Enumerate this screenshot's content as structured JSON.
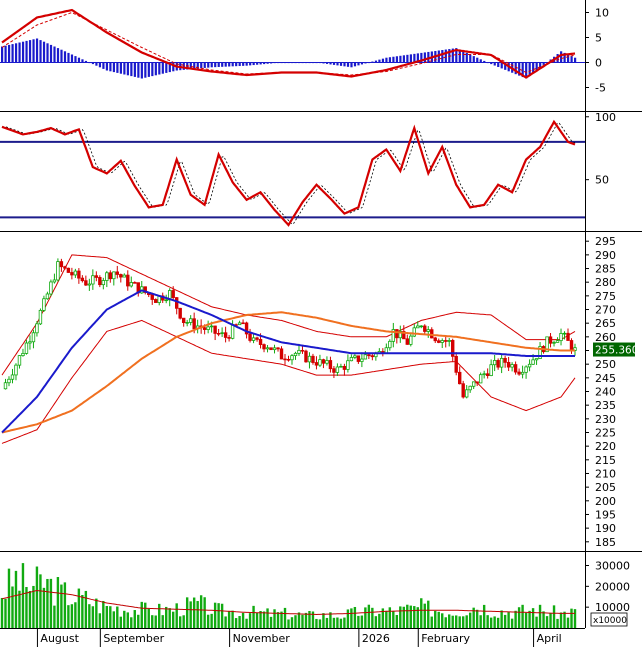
{
  "chart_data": [
    {
      "panel": "macd",
      "type": "line+bar",
      "y_ticks": [
        10,
        5,
        0,
        -5
      ],
      "ylim": [
        -9.5,
        12.5
      ],
      "line_color": "#d40000",
      "hist_color": "#1a1acc",
      "x_range": [
        0,
        164
      ],
      "series": [
        {
          "role": "macd",
          "x": [
            0,
            10,
            20,
            30,
            40,
            50,
            60,
            70,
            80,
            90,
            100,
            110,
            120,
            130,
            140,
            150,
            160,
            164
          ],
          "values": [
            4.0,
            9.0,
            10.5,
            6.0,
            2.0,
            -0.8,
            -1.8,
            -2.5,
            -2.0,
            -2.0,
            -2.8,
            -1.5,
            0.4,
            2.5,
            1.5,
            -3.0,
            1.5,
            1.8
          ]
        },
        {
          "role": "signal",
          "x": [
            0,
            10,
            20,
            30,
            40,
            50,
            60,
            70,
            80,
            90,
            100,
            110,
            120,
            130,
            140,
            150,
            160,
            164
          ],
          "values": [
            3.0,
            7.5,
            10.0,
            6.5,
            3.0,
            -0.3,
            -1.5,
            -2.3,
            -2.0,
            -2.0,
            -2.5,
            -1.8,
            -0.2,
            1.6,
            1.6,
            -2.0,
            0.8,
            1.5
          ]
        }
      ]
    },
    {
      "panel": "stochastic",
      "type": "line",
      "y_ticks": [
        100,
        50
      ],
      "ylim": [
        10,
        103
      ],
      "levels": [
        80,
        20
      ],
      "level_color": "#1c1c8c",
      "line_color": "#d40000",
      "x_range": [
        0,
        164
      ],
      "series": [
        {
          "role": "k",
          "x": [
            0,
            6,
            10,
            14,
            18,
            22,
            26,
            30,
            34,
            38,
            42,
            46,
            50,
            54,
            58,
            62,
            66,
            70,
            74,
            78,
            82,
            86,
            90,
            94,
            98,
            102,
            106,
            110,
            114,
            118,
            122,
            126,
            130,
            134,
            138,
            142,
            146,
            150,
            154,
            158,
            162,
            164
          ],
          "values": [
            92,
            86,
            88,
            91,
            86,
            90,
            60,
            55,
            65,
            45,
            28,
            30,
            66,
            38,
            30,
            70,
            48,
            34,
            40,
            26,
            14,
            32,
            46,
            35,
            23,
            28,
            66,
            74,
            57,
            91,
            55,
            76,
            46,
            28,
            30,
            46,
            40,
            66,
            76,
            96,
            80,
            78
          ]
        }
      ]
    },
    {
      "panel": "price",
      "type": "candlestick+line",
      "y_ticks": [
        295,
        290,
        285,
        280,
        275,
        270,
        265,
        260,
        255,
        250,
        245,
        240,
        235,
        230,
        225,
        220,
        215,
        210,
        205,
        200,
        195,
        190,
        185
      ],
      "ylim": [
        182,
        298
      ],
      "last_price": "255.360",
      "x_range": [
        0,
        164
      ],
      "series": [
        {
          "role": "close",
          "x": [
            0,
            4,
            8,
            12,
            16,
            20,
            24,
            28,
            32,
            36,
            40,
            44,
            48,
            52,
            56,
            60,
            64,
            68,
            72,
            76,
            80,
            84,
            88,
            92,
            96,
            100,
            104,
            108,
            112,
            116,
            120,
            124,
            128,
            132,
            136,
            140,
            144,
            148,
            152,
            156,
            160,
            164
          ],
          "values": [
            241,
            250,
            260,
            272,
            286,
            283,
            280,
            281,
            284,
            280,
            277,
            274,
            276,
            266,
            264,
            262,
            260,
            265,
            258,
            257,
            253,
            254,
            252,
            250,
            248,
            251,
            253,
            254,
            262,
            258,
            265,
            260,
            258,
            238,
            244,
            249,
            251,
            248,
            252,
            258,
            261,
            255
          ]
        },
        {
          "role": "ma_blue",
          "x": [
            0,
            10,
            20,
            30,
            40,
            50,
            60,
            70,
            80,
            90,
            100,
            110,
            120,
            130,
            140,
            150,
            160,
            164
          ],
          "values": [
            225,
            238,
            256,
            270,
            277,
            273,
            268,
            262,
            258,
            256,
            254,
            254,
            254,
            254,
            254,
            253,
            253,
            253
          ]
        },
        {
          "role": "ma_orange",
          "x": [
            0,
            10,
            20,
            30,
            40,
            50,
            60,
            70,
            80,
            90,
            100,
            110,
            120,
            130,
            140,
            150,
            160,
            164
          ],
          "values": [
            225,
            228,
            233,
            242,
            252,
            260,
            265,
            268,
            269,
            267,
            264,
            262,
            261,
            260,
            258,
            256,
            255,
            255
          ]
        },
        {
          "role": "bb_upper",
          "x": [
            0,
            10,
            20,
            30,
            40,
            50,
            60,
            70,
            80,
            90,
            100,
            110,
            120,
            130,
            140,
            150,
            160,
            164
          ],
          "values": [
            246,
            265,
            290,
            289,
            283,
            277,
            271,
            268,
            266,
            262,
            260,
            260,
            266,
            269,
            268,
            259,
            259,
            262
          ]
        },
        {
          "role": "bb_lower",
          "x": [
            0,
            10,
            20,
            30,
            40,
            50,
            60,
            70,
            80,
            90,
            100,
            110,
            120,
            130,
            140,
            150,
            160,
            164
          ],
          "values": [
            221,
            226,
            245,
            262,
            266,
            260,
            254,
            252,
            250,
            246,
            246,
            248,
            250,
            251,
            238,
            233,
            238,
            245
          ]
        }
      ]
    },
    {
      "panel": "volume",
      "type": "bar+line",
      "y_ticks": [
        "30000",
        "20000",
        "10000"
      ],
      "unit_label": "x10000",
      "ylim": [
        0,
        36000
      ],
      "bar_color": "#11aa11",
      "avg_color": "#c00000",
      "x_labels": [
        "August",
        "September",
        "November",
        "2026",
        "February",
        "April"
      ],
      "x_label_positions": [
        11,
        29,
        66,
        103,
        120,
        153
      ],
      "x_range": [
        0,
        164
      ],
      "series": [
        {
          "role": "volume",
          "x": [
            0,
            4,
            8,
            12,
            16,
            20,
            24,
            28,
            32,
            36,
            40,
            44,
            48,
            52,
            56,
            60,
            64,
            68,
            72,
            76,
            80,
            84,
            88,
            92,
            96,
            100,
            104,
            108,
            112,
            116,
            120,
            124,
            128,
            132,
            136,
            140,
            144,
            148,
            152,
            156,
            160,
            164
          ],
          "values": [
            17000,
            24000,
            20000,
            22000,
            18000,
            15000,
            14000,
            11000,
            10000,
            9000,
            9000,
            8500,
            9000,
            10000,
            12000,
            9000,
            8000,
            8000,
            7500,
            7000,
            7000,
            6500,
            6000,
            6500,
            6000,
            7000,
            8000,
            8500,
            8000,
            9000,
            10000,
            9000,
            8000,
            9000,
            11000,
            9000,
            8000,
            8000,
            9000,
            8000,
            7000,
            8000
          ]
        },
        {
          "role": "avg",
          "x": [
            0,
            10,
            20,
            30,
            40,
            50,
            60,
            70,
            80,
            90,
            100,
            110,
            120,
            130,
            140,
            150,
            160,
            164
          ],
          "values": [
            14000,
            18000,
            16000,
            12000,
            9500,
            9000,
            8500,
            7500,
            7000,
            6500,
            7000,
            8000,
            8500,
            8500,
            8000,
            7500,
            7000,
            7000
          ]
        }
      ]
    }
  ]
}
